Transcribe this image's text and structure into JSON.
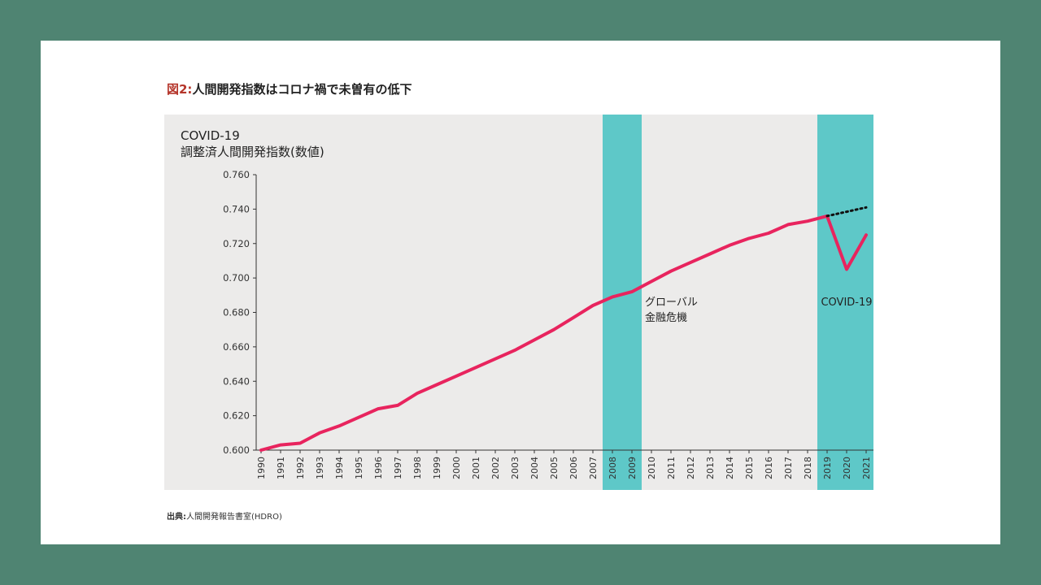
{
  "figure": {
    "prefix": "図2:",
    "title": "人間開発指数はコロナ禍で未曽有の低下"
  },
  "source": {
    "label": "出典:",
    "text": "人間開発報告書室(HDRO)"
  },
  "colors": {
    "background": "#4f8472",
    "panel": "#ecebea",
    "line": "#e8245e",
    "highlight": "#5ec8c8",
    "projection": "#111111"
  },
  "chart_data": {
    "type": "line",
    "title_lines": [
      "COVID-19",
      "調整済人間開発指数(数値)"
    ],
    "x": [
      "1990",
      "1991",
      "1992",
      "1993",
      "1994",
      "1995",
      "1996",
      "1997",
      "1998",
      "1999",
      "2000",
      "2001",
      "2002",
      "2003",
      "2004",
      "2005",
      "2006",
      "2007",
      "2008",
      "2009",
      "2010",
      "2011",
      "2012",
      "2013",
      "2014",
      "2015",
      "2016",
      "2017",
      "2018",
      "2019",
      "2020",
      "2021"
    ],
    "series": [
      {
        "values": [
          0.6,
          0.603,
          0.604,
          0.61,
          0.614,
          0.619,
          0.624,
          0.626,
          0.633,
          0.638,
          0.643,
          0.648,
          0.653,
          0.658,
          0.664,
          0.67,
          0.677,
          0.684,
          0.689,
          0.692,
          0.698,
          0.704,
          0.709,
          0.714,
          0.719,
          0.723,
          0.726,
          0.731,
          0.733,
          0.736,
          0.705,
          0.725
        ]
      },
      {
        "style": "dotted",
        "x": [
          "2019",
          "2021"
        ],
        "values": [
          0.736,
          0.741
        ]
      }
    ],
    "yticks": [
      "0.600",
      "0.620",
      "0.640",
      "0.660",
      "0.680",
      "0.700",
      "0.720",
      "0.740",
      "0.760"
    ],
    "ylim": [
      0.6,
      0.76
    ],
    "grid": false,
    "shaded_periods": [
      {
        "from": "2008",
        "to": "2009",
        "label_lines": [
          "グローバル",
          "金融危機"
        ]
      },
      {
        "from": "2019",
        "to": "2021",
        "label_lines": [
          "COVID-19"
        ]
      }
    ]
  }
}
